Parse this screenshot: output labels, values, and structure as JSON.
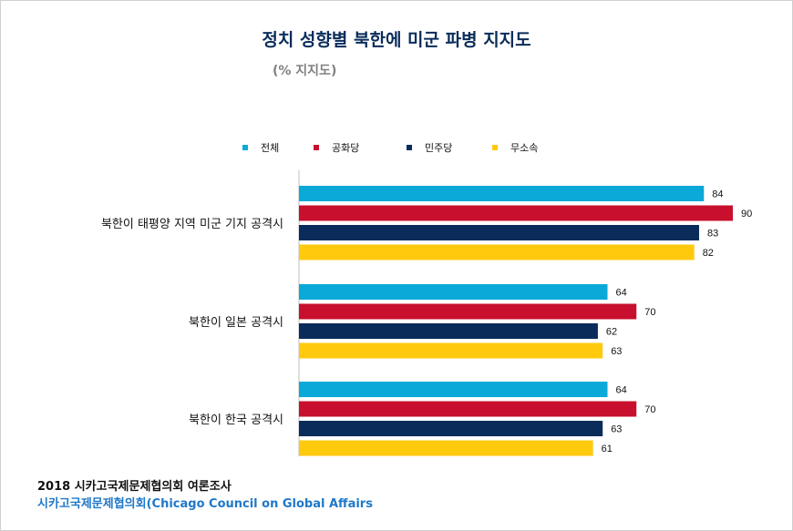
{
  "chart_data": {
    "type": "bar",
    "orientation": "horizontal",
    "title": "정치 성향별 북한에 미군 파병 지지도",
    "subtitle": "(% 지지도)",
    "categories": [
      "북한이 태평양 지역 미군 기지 공격시",
      "북한이 일본 공격시",
      "북한이 한국 공격시"
    ],
    "series": [
      {
        "name": "전체",
        "color": "#0aa9d8",
        "values": [
          84,
          64,
          64
        ]
      },
      {
        "name": "공화당",
        "color": "#c8102e",
        "values": [
          90,
          70,
          70
        ]
      },
      {
        "name": "민주당",
        "color": "#0a2c5a",
        "values": [
          83,
          62,
          63
        ]
      },
      {
        "name": "무소속",
        "color": "#ffc90e",
        "values": [
          82,
          63,
          61
        ]
      }
    ],
    "xlim": [
      0,
      90
    ],
    "legend_position": "top",
    "grid": false
  },
  "source": {
    "line1": "2018 시카고국제문제협의회 여론조사",
    "line2": "시카고국제문제협의회(Chicago Council on  Global Affairs"
  }
}
